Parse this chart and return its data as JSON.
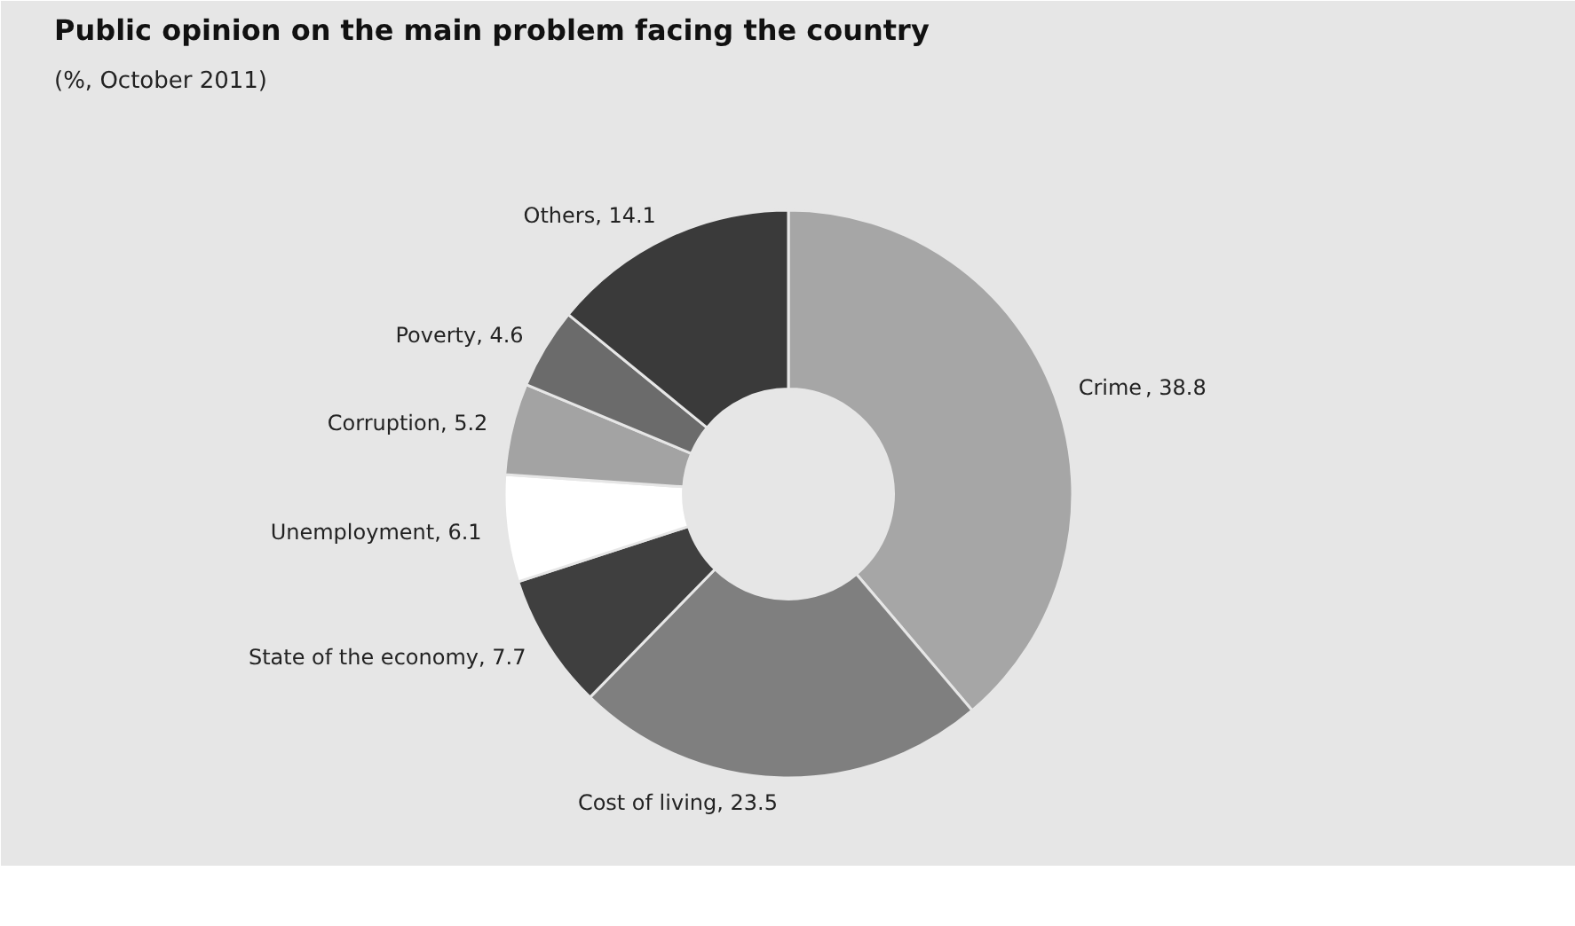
{
  "chart_data": {
    "type": "donut",
    "title": "Public opinion on the main problem facing the country",
    "subtitle": "(%, October 2011)",
    "categories": [
      "Crime",
      "Cost of living",
      "State of the economy",
      "Unemployment",
      "Corruption",
      "Poverty",
      "Others"
    ],
    "values": [
      38.8,
      23.5,
      7.7,
      6.1,
      5.2,
      4.6,
      14.1
    ],
    "colors": [
      "#a6a6a6",
      "#7f7f7f",
      "#3f3f3f",
      "#ffffff",
      "#a3a3a3",
      "#6b6b6b",
      "#3a3a3a"
    ],
    "value_labels": [
      ", 38.8",
      ", 23.5",
      ", 7.7",
      ", 6.1",
      ", 5.2",
      ", 4.6",
      ", 14.1"
    ]
  }
}
